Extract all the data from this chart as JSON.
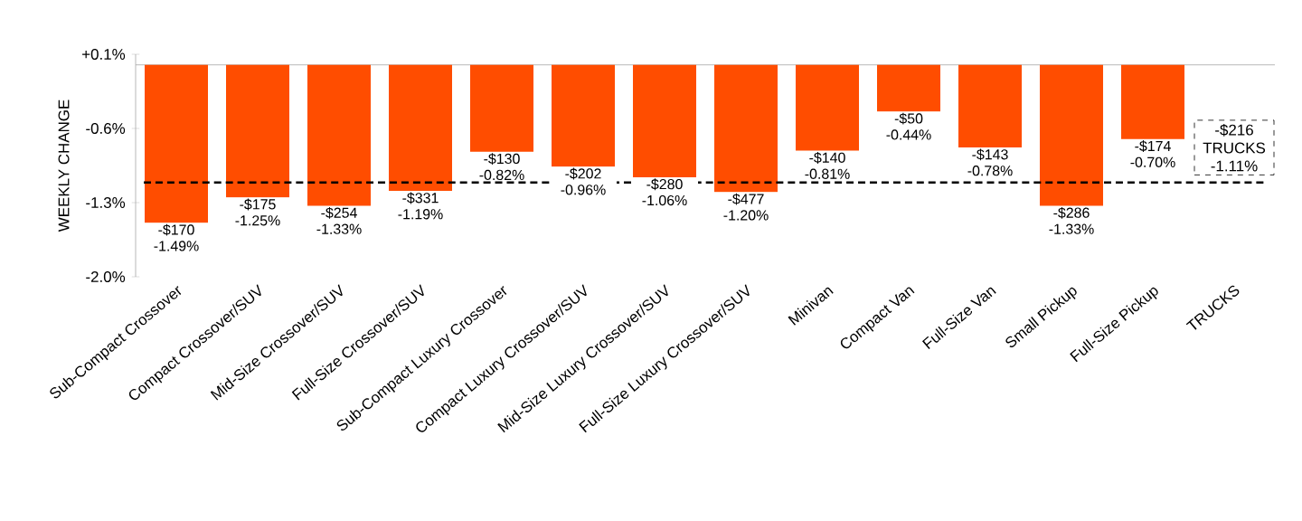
{
  "chart_data": {
    "type": "bar",
    "ylabel": "WEEKLY CHANGE",
    "categories": [
      "Sub-Compact Crossover",
      "Compact Crossover/SUV",
      "Mid-Size Crossover/SUV",
      "Full-Size Crossover/SUV",
      "Sub-Compact Luxury Crossover",
      "Compact Luxury Crossover/SUV",
      "Mid-Size Luxury Crossover/SUV",
      "Full-Size Luxury Crossover/SUV",
      "Minivan",
      "Compact Van",
      "Full-Size Van",
      "Small Pickup",
      "Full-Size Pickup",
      "TRUCKS"
    ],
    "values": [
      -1.49,
      -1.25,
      -1.33,
      -1.19,
      -0.82,
      -0.96,
      -1.06,
      -1.2,
      -0.81,
      -0.44,
      -0.78,
      -1.33,
      -0.7,
      null
    ],
    "value_labels": [
      "-$170 -1.49%",
      "-$175 -1.25%",
      "-$254 -1.33%",
      "-$331 -1.19%",
      "-$130 -0.82%",
      "-$202 -0.96%",
      "-$280 -1.06%",
      "-$477 -1.20%",
      "-$140 -0.81%",
      "-$50 -0.44%",
      "-$143 -0.78%",
      "-$286 -1.33%",
      "-$174 -0.70%",
      null
    ],
    "color": "#ff4d00",
    "ylim": [
      -2.0,
      0.1
    ],
    "yticks": [
      {
        "value": 0.1,
        "label": "+0.1%"
      },
      {
        "value": -0.6,
        "label": "-0.6%"
      },
      {
        "value": -1.3,
        "label": "-1.3%"
      },
      {
        "value": -2.0,
        "label": "-2.0%"
      }
    ],
    "ref_lines": [
      {
        "axis": "y",
        "value": -1.11,
        "color": "#000000",
        "line_style": "dashed"
      }
    ],
    "annotations": [
      {
        "text": "-$216 TRUCKS -1.11%",
        "x": "TRUCKS",
        "y": -1.11
      }
    ],
    "grid": false
  }
}
